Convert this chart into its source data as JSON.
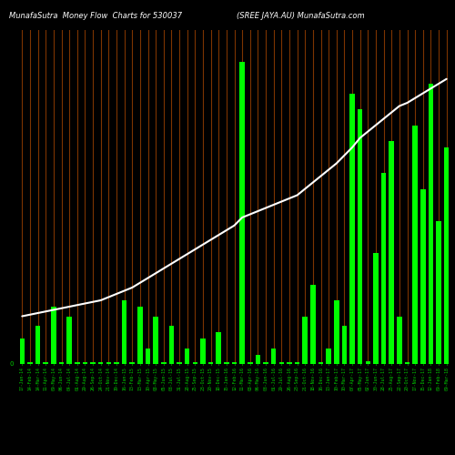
{
  "title_left": "MunafaSutra  Money Flow  Charts for 530037",
  "title_right": "(SREE JAYA.AU) MunafaSutra.com",
  "background_color": "#000000",
  "bar_color_positive": "#00ff00",
  "bar_color_negative": "#cc4400",
  "line_color": "#ffffff",
  "tick_color": "#00cc00",
  "vline_color": "#8B3A00",
  "n_bars": 55,
  "bar_values": [
    0.8,
    0.05,
    1.2,
    0.05,
    1.8,
    0.05,
    1.5,
    0.05,
    0.05,
    0.05,
    0.05,
    0.05,
    0.05,
    2.0,
    0.05,
    1.8,
    0.5,
    1.5,
    0.05,
    1.2,
    0.05,
    0.5,
    0.05,
    0.8,
    0.05,
    1.0,
    0.05,
    0.05,
    9.5,
    0.05,
    0.3,
    0.05,
    0.5,
    0.05,
    0.05,
    0.05,
    1.5,
    2.5,
    0.05,
    0.5,
    2.0,
    1.2,
    8.5,
    8.0,
    0.1,
    3.5,
    6.0,
    7.0,
    1.5,
    0.05,
    7.5,
    5.5,
    8.8,
    4.5,
    6.8
  ],
  "bar_is_negative": [
    false,
    false,
    false,
    false,
    false,
    false,
    false,
    false,
    false,
    false,
    false,
    false,
    false,
    false,
    false,
    false,
    false,
    false,
    false,
    false,
    false,
    false,
    false,
    false,
    false,
    false,
    false,
    false,
    false,
    false,
    false,
    false,
    false,
    false,
    false,
    false,
    false,
    false,
    false,
    false,
    false,
    false,
    false,
    false,
    false,
    false,
    false,
    false,
    false,
    false,
    false,
    false,
    false,
    false,
    false
  ],
  "line_values": [
    1.5,
    1.55,
    1.6,
    1.65,
    1.7,
    1.75,
    1.8,
    1.85,
    1.9,
    1.95,
    2.0,
    2.1,
    2.2,
    2.3,
    2.4,
    2.55,
    2.7,
    2.85,
    3.0,
    3.15,
    3.3,
    3.45,
    3.6,
    3.75,
    3.9,
    4.05,
    4.2,
    4.35,
    4.6,
    4.7,
    4.8,
    4.9,
    5.0,
    5.1,
    5.2,
    5.3,
    5.5,
    5.7,
    5.9,
    6.1,
    6.3,
    6.55,
    6.8,
    7.1,
    7.3,
    7.5,
    7.7,
    7.9,
    8.1,
    8.2,
    8.35,
    8.5,
    8.65,
    8.8,
    8.95
  ],
  "labels": [
    "17-Jan-14",
    "14-Feb-14",
    "14-Mar-14",
    "11-Apr-14",
    "09-May-14",
    "06-Jun-14",
    "04-Jul-14",
    "01-Aug-14",
    "29-Aug-14",
    "26-Sep-14",
    "24-Oct-14",
    "21-Nov-14",
    "19-Dec-14",
    "16-Jan-15",
    "13-Feb-15",
    "13-Mar-15",
    "10-Apr-15",
    "08-May-15",
    "05-Jun-15",
    "03-Jul-15",
    "31-Jul-15",
    "28-Aug-15",
    "25-Sep-15",
    "23-Oct-15",
    "20-Nov-15",
    "18-Dec-15",
    "15-Jan-16",
    "12-Feb-16",
    "11-Mar-16",
    "08-Apr-16",
    "06-May-16",
    "03-Jun-16",
    "01-Jul-16",
    "29-Jul-16",
    "26-Aug-16",
    "23-Sep-16",
    "21-Oct-16",
    "18-Nov-16",
    "16-Dec-16",
    "13-Jan-17",
    "10-Feb-17",
    "10-Mar-17",
    "07-Apr-17",
    "05-May-17",
    "02-Jun-17",
    "30-Jun-17",
    "28-Jul-17",
    "25-Aug-17",
    "22-Sep-17",
    "20-Oct-17",
    "17-Nov-17",
    "15-Dec-17",
    "12-Jan-18",
    "09-Feb-18",
    "09-Mar-18"
  ],
  "ylim_max": 10.5,
  "bar_width": 0.65,
  "figsize": [
    5.0,
    5.0
  ],
  "dpi": 100
}
